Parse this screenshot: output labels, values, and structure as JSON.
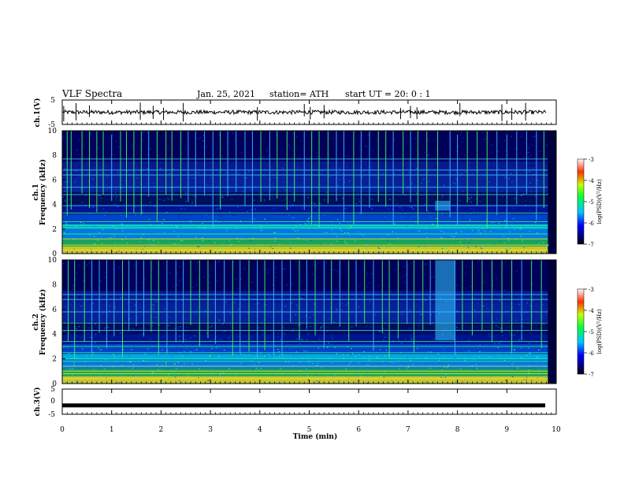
{
  "header": {
    "title": "VLF Spectra",
    "date": "Jan. 25, 2021",
    "station": "station= ATH",
    "start": "start UT =  20: 0  : 1"
  },
  "chart_data": [
    {
      "type": "line",
      "name": "ch1-waveform",
      "ylabel": "ch.1(V)",
      "ylim": [
        -5,
        5
      ],
      "yticks": [
        "5",
        "-5"
      ],
      "xlim": [
        0,
        10
      ],
      "level": 0.0,
      "spikes_min": [
        0.03,
        0.28,
        0.55,
        1.58,
        1.84,
        2.05,
        2.45,
        3.95,
        4.9,
        5.02,
        5.3,
        6.85,
        7.05,
        7.18,
        8.05,
        8.9,
        9.1,
        9.38
      ]
    },
    {
      "type": "heatmap",
      "name": "ch1-spectrogram",
      "ylabel_top": "ch.1",
      "ylabel": "Frequency (kHz)",
      "xlim": [
        0,
        9.83
      ],
      "ylim": [
        0,
        10
      ],
      "yticks": [
        "0",
        "2",
        "4",
        "6",
        "8",
        "10"
      ],
      "colorbar": {
        "label": "log(PSD)(V²/Hz)",
        "range": [
          -7,
          -3
        ],
        "ticks": [
          "-3",
          "-4",
          "-5",
          "-6",
          "-7"
        ]
      },
      "tone_lines_khz": [
        0.3,
        0.7,
        1.2,
        1.6,
        2.1,
        2.3,
        2.6,
        3.3,
        3.9,
        4.8,
        5.4,
        6.4,
        6.8,
        7.7
      ],
      "sferic_times_min": [
        0.1,
        0.18,
        0.4,
        0.55,
        0.7,
        0.83,
        1.0,
        1.18,
        1.3,
        1.45,
        1.6,
        1.75,
        1.92,
        2.1,
        2.22,
        2.4,
        2.55,
        2.7,
        2.88,
        3.05,
        3.2,
        3.35,
        3.52,
        3.7,
        3.85,
        4.02,
        4.2,
        4.35,
        4.55,
        4.7,
        4.9,
        5.05,
        5.2,
        5.38,
        5.55,
        5.7,
        5.9,
        6.05,
        6.22,
        6.4,
        6.55,
        6.7,
        6.9,
        7.05,
        7.2,
        7.38,
        7.6,
        7.85,
        8.0,
        8.2,
        8.4,
        8.6,
        8.8,
        9.0,
        9.2,
        9.4,
        9.6,
        9.75
      ],
      "emission": {
        "t_start_min": 7.55,
        "t_end_min": 7.85,
        "f_low_khz": 3.5,
        "f_high_khz": 4.3
      }
    },
    {
      "type": "heatmap",
      "name": "ch2-spectrogram",
      "ylabel_top": "ch.2",
      "ylabel": "Frequency (kHz)",
      "xlim": [
        0,
        9.83
      ],
      "ylim": [
        0,
        10
      ],
      "yticks": [
        "0",
        "2",
        "4",
        "6",
        "8",
        "10"
      ],
      "colorbar": {
        "label": "log(PSD)(V²/Hz)",
        "range": [
          -7,
          -3
        ],
        "ticks": [
          "-3",
          "-4",
          "-5",
          "-6",
          "-7"
        ]
      },
      "tone_lines_khz": [
        0.4,
        0.8,
        1.0,
        1.4,
        1.8,
        2.0,
        2.5,
        3.0,
        3.4,
        4.3,
        4.9,
        5.8,
        6.8,
        7.2
      ],
      "sferic_times_min": [
        0.12,
        0.25,
        0.45,
        0.6,
        0.75,
        0.9,
        1.05,
        1.22,
        1.35,
        1.5,
        1.65,
        1.8,
        1.95,
        2.12,
        2.3,
        2.45,
        2.6,
        2.78,
        2.95,
        3.1,
        3.28,
        3.45,
        3.6,
        3.78,
        3.95,
        4.1,
        4.28,
        4.45,
        4.62,
        4.8,
        4.95,
        5.12,
        5.3,
        5.45,
        5.62,
        5.8,
        5.95,
        6.12,
        6.3,
        6.48,
        6.62,
        6.8,
        6.98,
        7.12,
        7.3,
        7.45,
        7.95,
        8.1,
        8.3,
        8.5,
        8.7,
        8.9,
        9.1,
        9.3,
        9.5,
        9.7
      ],
      "emission": {
        "t_start_min": 7.55,
        "t_end_min": 7.95,
        "f_low_khz": 3.5,
        "f_high_khz": 10
      }
    },
    {
      "type": "line",
      "name": "ch3-waveform",
      "ylabel": "ch.3(V)",
      "ylim": [
        -5,
        5
      ],
      "yticks": [
        "5",
        "0",
        "-5"
      ],
      "xlim": [
        0,
        10
      ],
      "level": -1.5
    }
  ],
  "xaxis": {
    "label": "Time (min)",
    "ticks": [
      "0",
      "1",
      "2",
      "3",
      "4",
      "5",
      "6",
      "7",
      "8",
      "9",
      "10"
    ]
  }
}
